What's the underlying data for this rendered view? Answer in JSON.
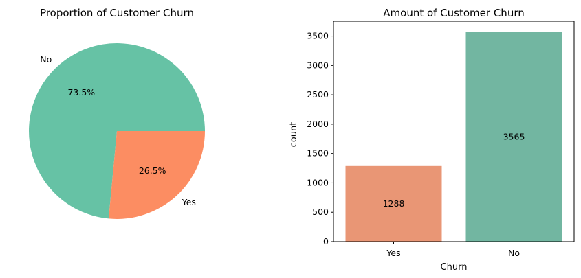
{
  "chart_data": [
    {
      "type": "pie",
      "title": "Proportion of Customer Churn",
      "slices": [
        {
          "label": "No",
          "value": 73.5,
          "pct_label": "73.5%",
          "color": "#66c2a5"
        },
        {
          "label": "Yes",
          "value": 26.5,
          "pct_label": "26.5%",
          "color": "#fc8d62"
        }
      ]
    },
    {
      "type": "bar",
      "title": "Amount of Customer Churn",
      "xlabel": "Churn",
      "ylabel": "count",
      "categories": [
        "Yes",
        "No"
      ],
      "values": [
        1288,
        3565
      ],
      "data_labels": [
        "1288",
        "3565"
      ],
      "colors": [
        "#e99675",
        "#72b6a1"
      ],
      "ylim": [
        0,
        3565
      ],
      "yticks": [
        0,
        500,
        1000,
        1500,
        2000,
        2500,
        3000,
        3500
      ],
      "grid": false
    }
  ]
}
